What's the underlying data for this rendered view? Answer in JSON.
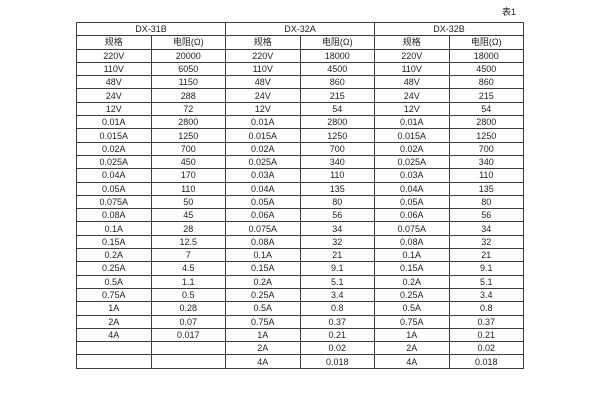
{
  "page": {
    "table_label": "表1"
  },
  "table": {
    "groups": [
      {
        "name": "DX-31B",
        "col_headers": [
          "规格",
          "电阻(Ω)"
        ]
      },
      {
        "name": "DX-32A",
        "col_headers": [
          "规格",
          "电阻(Ω)"
        ]
      },
      {
        "name": "DX-32B",
        "col_headers": [
          "规格",
          "电阻(Ω)"
        ]
      }
    ],
    "rows": [
      [
        "220V",
        "20000",
        "220V",
        "18000",
        "220V",
        "18000"
      ],
      [
        "110V",
        "6050",
        "110V",
        "4500",
        "110V",
        "4500"
      ],
      [
        "48V",
        "1150",
        "48V",
        "860",
        "48V",
        "860"
      ],
      [
        "24V",
        "288",
        "24V",
        "215",
        "24V",
        "215"
      ],
      [
        "12V",
        "72",
        "12V",
        "54",
        "12V",
        "54"
      ],
      [
        "0.01A",
        "2800",
        "0.01A",
        "2800",
        "0.01A",
        "2800"
      ],
      [
        "0.015A",
        "1250",
        "0.015A",
        "1250",
        "0.015A",
        "1250"
      ],
      [
        "0.02A",
        "700",
        "0.02A",
        "700",
        "0.02A",
        "700"
      ],
      [
        "0.025A",
        "450",
        "0.025A",
        "340",
        "0.025A",
        "340"
      ],
      [
        "0.04A",
        "170",
        "0.03A",
        "110",
        "0.03A",
        "110"
      ],
      [
        "0.05A",
        "110",
        "0.04A",
        "135",
        "0.04A",
        "135"
      ],
      [
        "0.075A",
        "50",
        "0.05A",
        "80",
        "0.05A",
        "80"
      ],
      [
        "0.08A",
        "45",
        "0.06A",
        "56",
        "0.06A",
        "56"
      ],
      [
        "0.1A",
        "28",
        "0.075A",
        "34",
        "0.075A",
        "34"
      ],
      [
        "0.15A",
        "12.5",
        "0.08A",
        "32",
        "0.08A",
        "32"
      ],
      [
        "0.2A",
        "7",
        "0.1A",
        "21",
        "0.1A",
        "21"
      ],
      [
        "0.25A",
        "4.5",
        "0.15A",
        "9.1",
        "0.15A",
        "9.1"
      ],
      [
        "0.5A",
        "1.1",
        "0.2A",
        "5.1",
        "0.2A",
        "5.1"
      ],
      [
        "0.75A",
        "0.5",
        "0.25A",
        "3.4",
        "0.25A",
        "3.4"
      ],
      [
        "1A",
        "0.28",
        "0.5A",
        "0.8",
        "0.5A",
        "0.8"
      ],
      [
        "2A",
        "0.07",
        "0.75A",
        "0.37",
        "0.75A",
        "0.37"
      ],
      [
        "4A",
        "0.017",
        "1A",
        "0.21",
        "1A",
        "0.21"
      ],
      [
        "",
        "",
        "2A",
        "0.02",
        "2A",
        "0.02"
      ],
      [
        "",
        "",
        "4A",
        "0.018",
        "4A",
        "0.018"
      ]
    ]
  }
}
